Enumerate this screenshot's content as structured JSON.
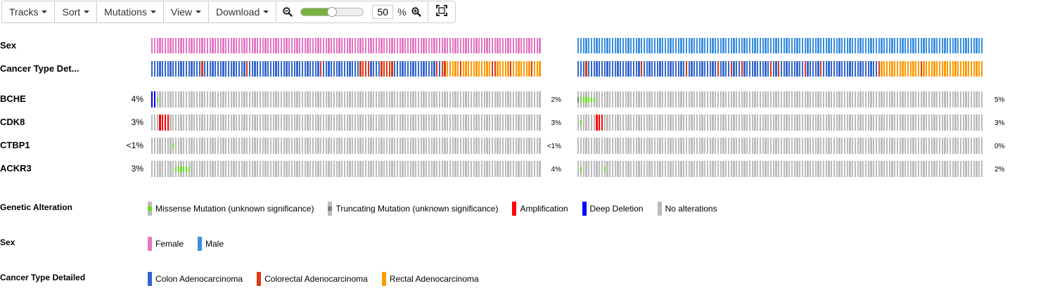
{
  "toolbar": {
    "tracks_label": "Tracks",
    "sort_label": "Sort",
    "mutations_label": "Mutations",
    "view_label": "View",
    "download_label": "Download",
    "zoom_value": "50",
    "zoom_unit": "%",
    "zoom_fraction": 0.5
  },
  "tracks": {
    "sex": "Sex",
    "cancer_type": "Cancer Type Det..."
  },
  "genes": [
    {
      "name": "BCHE",
      "pct_left": "4%",
      "pct_mid": "2%",
      "pct_right": "5%"
    },
    {
      "name": "CDK8",
      "pct_left": "3%",
      "pct_mid": "3%",
      "pct_right": "3%"
    },
    {
      "name": "CTBP1",
      "pct_left": "<1%",
      "pct_mid": "<1%",
      "pct_right": "0%"
    },
    {
      "name": "ACKR3",
      "pct_left": "3%",
      "pct_mid": "4%",
      "pct_right": "2%"
    }
  ],
  "legend": {
    "genetic_alteration": {
      "title": "Genetic Alteration",
      "items": [
        {
          "label": "Missense Mutation (unknown significance)",
          "color": "#bbbbbb",
          "inner": "#66dd22"
        },
        {
          "label": "Truncating Mutation (unknown significance)",
          "color": "#bbbbbb",
          "inner": "#708090"
        },
        {
          "label": "Amplification",
          "color": "#ff0000"
        },
        {
          "label": "Deep Deletion",
          "color": "#0000ff"
        },
        {
          "label": "No alterations",
          "color": "#bbbbbb"
        }
      ]
    },
    "sex": {
      "title": "Sex",
      "items": [
        {
          "label": "Female",
          "color": "#e377c2"
        },
        {
          "label": "Male",
          "color": "#3b8fe0"
        }
      ]
    },
    "cancer_type": {
      "title": "Cancer Type Detailed",
      "items": [
        {
          "label": "Colon Adenocarcinoma",
          "color": "#3366cc"
        },
        {
          "label": "Colorectal Adenocarcinoma",
          "color": "#dc3912"
        },
        {
          "label": "Rectal Adenocarcinoma",
          "color": "#ff9900"
        }
      ]
    }
  },
  "colors": {
    "female": "#e377c2",
    "male": "#3b8fe0",
    "colon": "#3366cc",
    "colorectal": "#dc3912",
    "rectal": "#ff9900",
    "none": "#bbbbbb",
    "amp": "#ff0000",
    "deldeep": "#0000ff",
    "missense": "#66dd22",
    "truncating": "#708090"
  },
  "samples": {
    "female_count": 148,
    "male_count": 154,
    "female_cancer": "cccccccccccccccccccrccccccccccccccccrcccccccccccccccccccccccccccrccccccccccccccrrrrccccrrrrrccccccccccccccccrcrrooooorooooooooooorrooooorooooooorooooorroooo",
    "male_cancer": "cccrccccccccccccccccccccrccccccccccccccccrcccccccccccrccccrcccrccccccccccrccrcccccccccrcccccrcccccccccccccccccccccrooooooooooooooorooooooooooooooooooooooooooccccccccc",
    "alterations_female": {
      "BCHE": {
        "0": "d",
        "1": "d",
        "2": "m"
      },
      "CDK8": {
        "3": "a",
        "4": "a",
        "5": "a",
        "6": "a"
      },
      "CTBP1": {
        "8": "m"
      },
      "ACKR3": {
        "9": "m",
        "10": "m",
        "11": "m",
        "12": "m",
        "13": "m",
        "14": "m"
      }
    },
    "alterations_male": {
      "BCHE": {
        "0": "t",
        "1": "m",
        "2": "m",
        "3": "m",
        "4": "m",
        "5": "m",
        "6": "m"
      },
      "CDK8": {
        "1": "m",
        "7": "a",
        "8": "a",
        "9": "a"
      },
      "CTBP1": {},
      "ACKR3": {
        "1": "m",
        "10": "m"
      }
    }
  }
}
